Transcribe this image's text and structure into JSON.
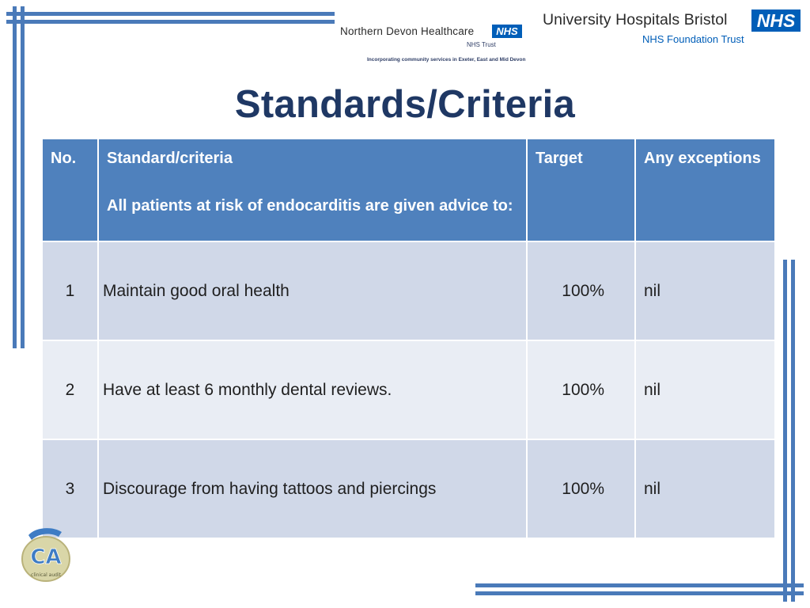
{
  "logos": {
    "northern_devon": {
      "name": "Northern Devon Healthcare",
      "badge": "NHS",
      "trust": "NHS Trust",
      "tagline": "Incorporating community services in Exeter, East and Mid Devon"
    },
    "uh_bristol": {
      "name": "University Hospitals Bristol",
      "badge": "NHS",
      "trust": "NHS Foundation Trust"
    },
    "clinical_audit": {
      "mark": "CA",
      "text": "clinical audit"
    }
  },
  "title": "Standards/Criteria",
  "table": {
    "headers": {
      "no": "No.",
      "standard": "Standard/criteria",
      "standard_sub": "All patients at risk of endocarditis are given advice to:",
      "target": "Target",
      "exceptions": "Any exceptions"
    },
    "rows": [
      {
        "no": "1",
        "standard": "Maintain good oral health",
        "target": "100%",
        "exceptions": "nil"
      },
      {
        "no": "2",
        "standard": "Have at least 6 monthly dental reviews.",
        "target": "100%",
        "exceptions": "nil"
      },
      {
        "no": "3",
        "standard": "Discourage from having tattoos and piercings",
        "target": "100%",
        "exceptions": "nil"
      }
    ]
  },
  "colors": {
    "header_bg": "#4f81bd",
    "row_dark": "#d0d8e8",
    "row_light": "#e9edf4",
    "title": "#1f3864",
    "nhs_blue": "#005eb8",
    "frame_lines": "#4a7ab9"
  }
}
